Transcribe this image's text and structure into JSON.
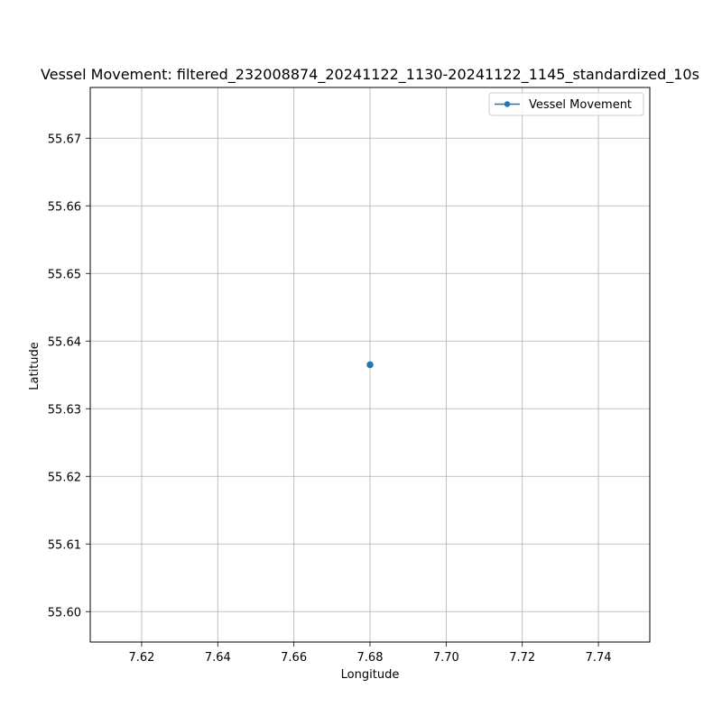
{
  "chart_data": {
    "type": "line",
    "title": "Vessel Movement: filtered_232008874_20241122_1130-20241122_1145_standardized_10s",
    "xlabel": "Longitude",
    "ylabel": "Latitude",
    "xlim": [
      7.6065,
      7.7535
    ],
    "ylim": [
      55.5955,
      55.6775
    ],
    "x_ticks": [
      7.62,
      7.64,
      7.66,
      7.68,
      7.7,
      7.72,
      7.74
    ],
    "x_tick_labels": [
      "7.62",
      "7.64",
      "7.66",
      "7.68",
      "7.70",
      "7.72",
      "7.74"
    ],
    "y_ticks": [
      55.6,
      55.61,
      55.62,
      55.63,
      55.64,
      55.65,
      55.66,
      55.67
    ],
    "y_tick_labels": [
      "55.60",
      "55.61",
      "55.62",
      "55.63",
      "55.64",
      "55.65",
      "55.66",
      "55.67"
    ],
    "grid": true,
    "legend_position": "top-right",
    "series": [
      {
        "name": "Vessel Movement",
        "color": "#1f77b4",
        "marker": "circle",
        "x": [
          7.68,
          7.68
        ],
        "y": [
          55.6365,
          55.6365
        ]
      }
    ]
  }
}
